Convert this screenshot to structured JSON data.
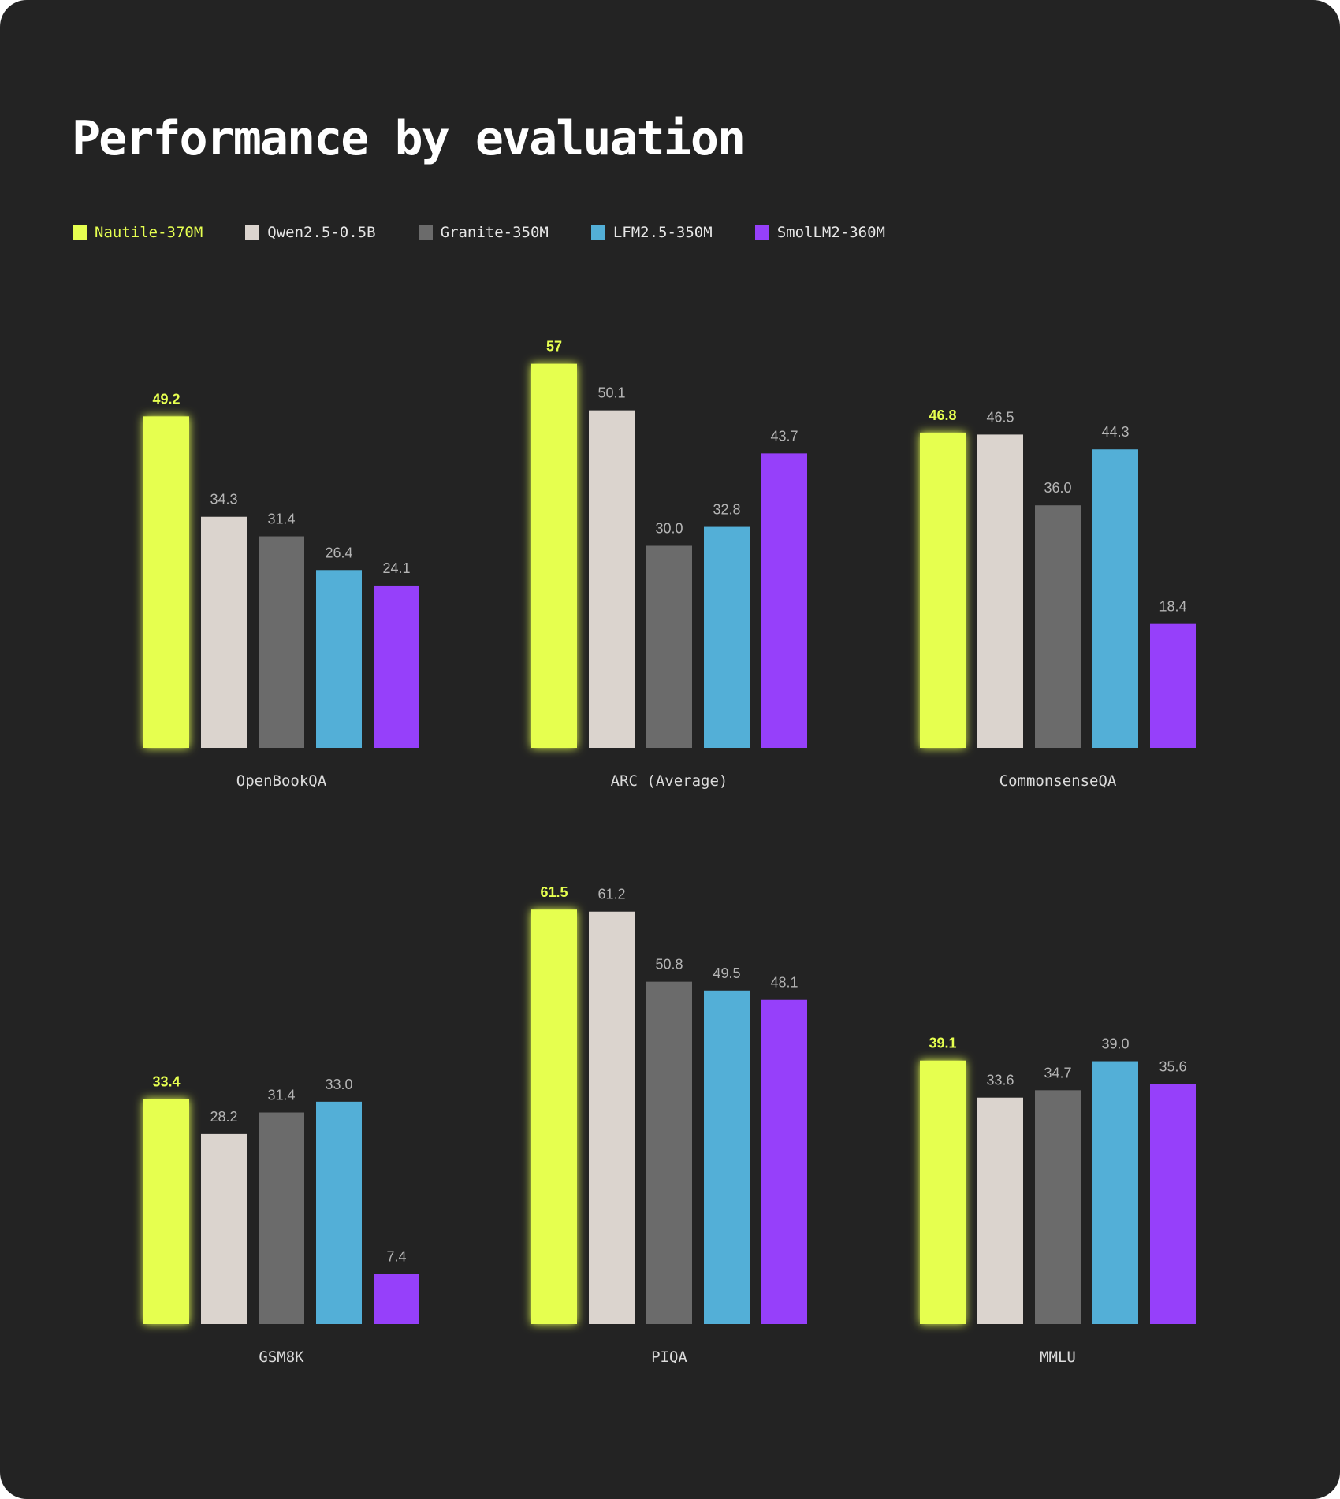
{
  "title": "Performance by evaluation",
  "legend": [
    {
      "name": "Nautile-370M",
      "color": "#e6ff50"
    },
    {
      "name": "Qwen2.5-0.5B",
      "color": "#dbd4ce"
    },
    {
      "name": "Granite-350M",
      "color": "#6b6b6b"
    },
    {
      "name": "LFM2.5-350M",
      "color": "#53afd7"
    },
    {
      "name": "SmolLM2-360M",
      "color": "#9640fa"
    }
  ],
  "chart_data": {
    "type": "bar",
    "title": "Performance by evaluation",
    "legend_position": "top-left",
    "grid": false,
    "highlight_series": "Nautile-370M",
    "series_colors": [
      "#e6ff50",
      "#dbd4ce",
      "#6b6b6b",
      "#53afd7",
      "#9640fa"
    ],
    "series": [
      "Nautile-370M",
      "Qwen2.5-0.5B",
      "Granite-350M",
      "LFM2.5-350M",
      "SmolLM2-360M"
    ],
    "panels": [
      {
        "category": "OpenBookQA",
        "values": [
          49.2,
          34.3,
          31.4,
          26.4,
          24.1
        ],
        "labels": [
          "49.2",
          "34.3",
          "31.4",
          "26.4",
          "24.1"
        ]
      },
      {
        "category": "ARC (Average)",
        "values": [
          57,
          50.1,
          30.0,
          32.8,
          43.7
        ],
        "labels": [
          "57",
          "50.1",
          "30.0",
          "32.8",
          "43.7"
        ]
      },
      {
        "category": "CommonsenseQA",
        "values": [
          46.8,
          46.5,
          36.0,
          44.3,
          18.4
        ],
        "labels": [
          "46.8",
          "46.5",
          "36.0",
          "44.3",
          "18.4"
        ]
      },
      {
        "category": "GSM8K",
        "values": [
          33.4,
          28.2,
          31.4,
          33.0,
          7.4
        ],
        "labels": [
          "33.4",
          "28.2",
          "31.4",
          "33.0",
          "7.4"
        ]
      },
      {
        "category": "PIQA",
        "values": [
          61.5,
          61.2,
          50.8,
          49.5,
          48.1
        ],
        "labels": [
          "61.5",
          "61.2",
          "50.8",
          "49.5",
          "48.1"
        ]
      },
      {
        "category": "MMLU",
        "values": [
          39.1,
          33.6,
          34.7,
          39.0,
          35.6
        ],
        "labels": [
          "39.1",
          "33.6",
          "34.7",
          "39.0",
          "35.6"
        ]
      }
    ]
  }
}
